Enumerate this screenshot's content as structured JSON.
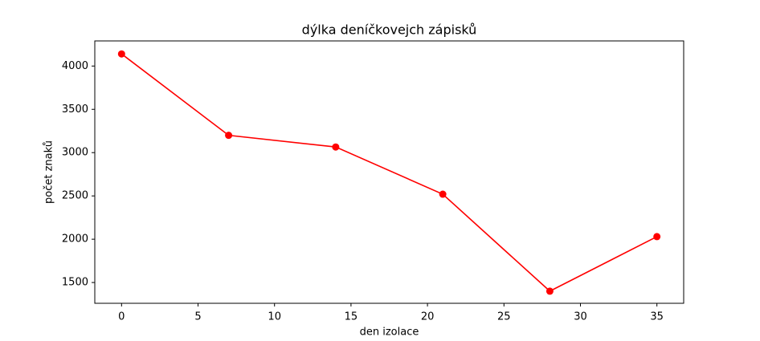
{
  "chart_data": {
    "type": "line",
    "title": "dýlka deníčkovejch zápisků",
    "x_label": "den izolace",
    "y_label": "počet znaků",
    "x": [
      0,
      7,
      14,
      21,
      28,
      35
    ],
    "series": [
      {
        "color": "#ff0000",
        "values": [
          4140,
          3200,
          3065,
          2520,
          1400,
          2030
        ]
      }
    ],
    "xlim": [
      -1.75,
      36.75
    ],
    "ylim": [
      1260,
      4290
    ],
    "xticks": [
      0,
      5,
      10,
      15,
      20,
      25,
      30,
      35
    ],
    "yticks": [
      1500,
      2000,
      2500,
      3000,
      3500,
      4000
    ],
    "grid": false
  }
}
